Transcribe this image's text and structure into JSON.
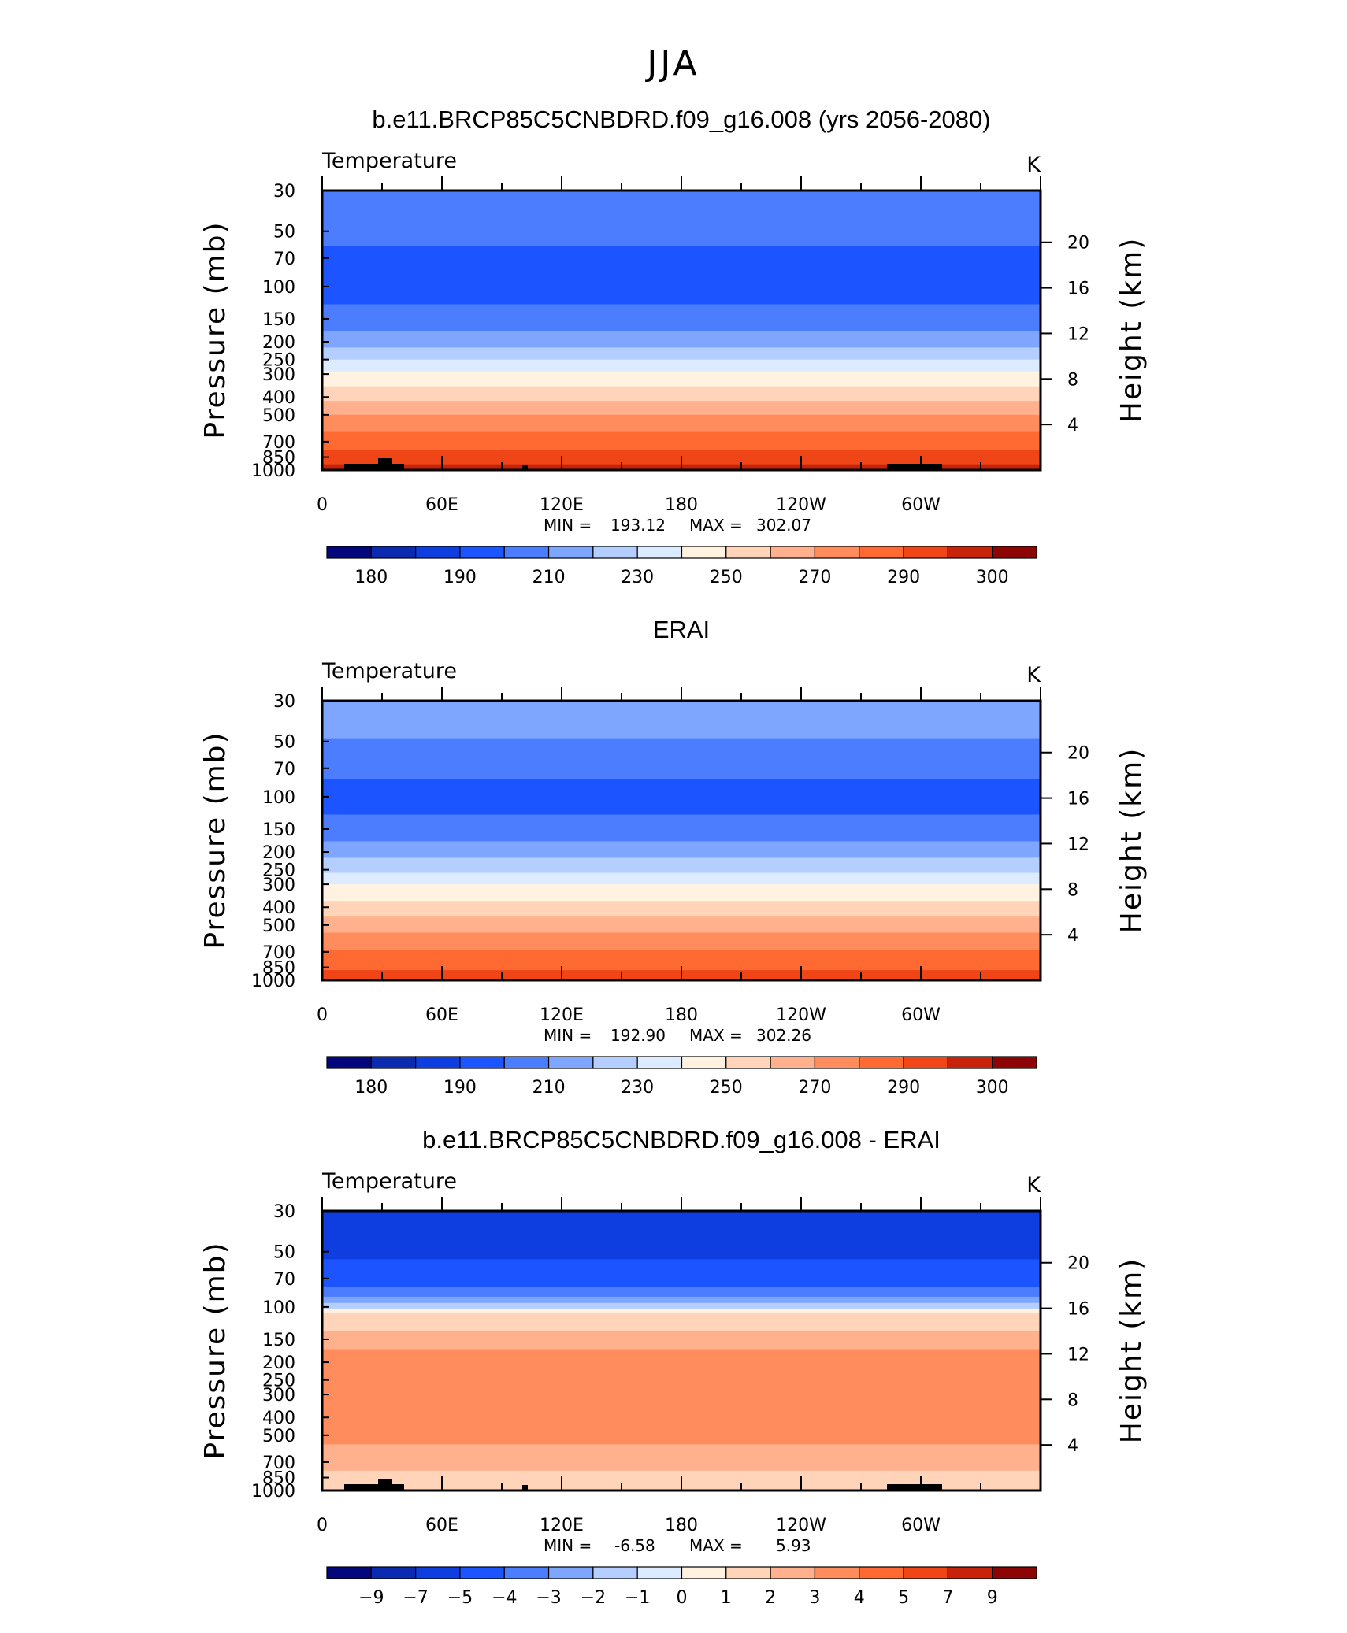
{
  "page_title": "JJA",
  "chart_data": [
    {
      "type": "heatmap",
      "title": "b.e11.BRCP85C5CNBDRD.f09_g16.008 (yrs 2056-2080)",
      "left_string": "Temperature",
      "right_string": "K",
      "ylabel": "Pressure (mb)",
      "ylabel_right": "Height (km)",
      "x_ticks": [
        "0",
        "60E",
        "120E",
        "180",
        "120W",
        "60W"
      ],
      "y_ticks": [
        30,
        50,
        70,
        100,
        150,
        200,
        250,
        300,
        400,
        500,
        700,
        850,
        1000
      ],
      "y_right_ticks": [
        4,
        8,
        12,
        16,
        20
      ],
      "ylim": [
        1000,
        30
      ],
      "stats": {
        "min_label": "MIN =",
        "min_value": "193.12",
        "max_label": "MAX =",
        "max_value": "302.07"
      },
      "colorbar_labels": [
        "180",
        "190",
        "210",
        "230",
        "250",
        "270",
        "290",
        "300"
      ],
      "colorbar_colors": [
        "#04067c",
        "#0a2ab0",
        "#0f3ee0",
        "#1c55ff",
        "#4c7dff",
        "#7ea6ff",
        "#b3ceff",
        "#dcebff",
        "#fff2e0",
        "#ffd4b8",
        "#ffb08c",
        "#ff8c5c",
        "#ff6a33",
        "#f04517",
        "#c7220a",
        "#8c0404"
      ],
      "field_layers": [
        {
          "p_top": 30,
          "p_bottom": 60,
          "color": "#4c7dff"
        },
        {
          "p_top": 60,
          "p_bottom": 125,
          "color": "#1c55ff"
        },
        {
          "p_top": 125,
          "p_bottom": 175,
          "color": "#4c7dff"
        },
        {
          "p_top": 175,
          "p_bottom": 215,
          "color": "#7ea6ff"
        },
        {
          "p_top": 215,
          "p_bottom": 250,
          "color": "#b3ceff"
        },
        {
          "p_top": 250,
          "p_bottom": 290,
          "color": "#dcebff"
        },
        {
          "p_top": 290,
          "p_bottom": 350,
          "color": "#fff2e0"
        },
        {
          "p_top": 350,
          "p_bottom": 420,
          "color": "#ffd4b8"
        },
        {
          "p_top": 420,
          "p_bottom": 500,
          "color": "#ffb08c"
        },
        {
          "p_top": 500,
          "p_bottom": 620,
          "color": "#ff8c5c"
        },
        {
          "p_top": 620,
          "p_bottom": 780,
          "color": "#ff6a33"
        },
        {
          "p_top": 780,
          "p_bottom": 930,
          "color": "#f04517"
        },
        {
          "p_top": 930,
          "p_bottom": 1000,
          "color": "#c7220a"
        }
      ]
    },
    {
      "type": "heatmap",
      "title": "ERAI",
      "left_string": "Temperature",
      "right_string": "K",
      "ylabel": "Pressure (mb)",
      "ylabel_right": "Height (km)",
      "x_ticks": [
        "0",
        "60E",
        "120E",
        "180",
        "120W",
        "60W"
      ],
      "y_ticks": [
        30,
        50,
        70,
        100,
        150,
        200,
        250,
        300,
        400,
        500,
        700,
        850,
        1000
      ],
      "y_right_ticks": [
        4,
        8,
        12,
        16,
        20
      ],
      "ylim": [
        1000,
        30
      ],
      "stats": {
        "min_label": "MIN =",
        "min_value": "192.90",
        "max_label": "MAX =",
        "max_value": "302.26"
      },
      "colorbar_labels": [
        "180",
        "190",
        "210",
        "230",
        "250",
        "270",
        "290",
        "300"
      ],
      "colorbar_colors": [
        "#04067c",
        "#0a2ab0",
        "#0f3ee0",
        "#1c55ff",
        "#4c7dff",
        "#7ea6ff",
        "#b3ceff",
        "#dcebff",
        "#fff2e0",
        "#ffd4b8",
        "#ffb08c",
        "#ff8c5c",
        "#ff6a33",
        "#f04517",
        "#c7220a",
        "#8c0404"
      ],
      "field_layers": [
        {
          "p_top": 30,
          "p_bottom": 48,
          "color": "#7ea6ff"
        },
        {
          "p_top": 48,
          "p_bottom": 80,
          "color": "#4c7dff"
        },
        {
          "p_top": 80,
          "p_bottom": 125,
          "color": "#1c55ff"
        },
        {
          "p_top": 125,
          "p_bottom": 175,
          "color": "#4c7dff"
        },
        {
          "p_top": 175,
          "p_bottom": 215,
          "color": "#7ea6ff"
        },
        {
          "p_top": 215,
          "p_bottom": 260,
          "color": "#b3ceff"
        },
        {
          "p_top": 260,
          "p_bottom": 300,
          "color": "#dcebff"
        },
        {
          "p_top": 300,
          "p_bottom": 370,
          "color": "#fff2e0"
        },
        {
          "p_top": 370,
          "p_bottom": 450,
          "color": "#ffd4b8"
        },
        {
          "p_top": 450,
          "p_bottom": 550,
          "color": "#ffb08c"
        },
        {
          "p_top": 550,
          "p_bottom": 680,
          "color": "#ff8c5c"
        },
        {
          "p_top": 680,
          "p_bottom": 880,
          "color": "#ff6a33"
        },
        {
          "p_top": 880,
          "p_bottom": 1000,
          "color": "#f04517"
        }
      ]
    },
    {
      "type": "heatmap",
      "title": "b.e11.BRCP85C5CNBDRD.f09_g16.008 - ERAI",
      "left_string": "Temperature",
      "right_string": "K",
      "ylabel": "Pressure (mb)",
      "ylabel_right": "Height (km)",
      "x_ticks": [
        "0",
        "60E",
        "120E",
        "180",
        "120W",
        "60W"
      ],
      "y_ticks": [
        30,
        50,
        70,
        100,
        150,
        200,
        250,
        300,
        400,
        500,
        700,
        850,
        1000
      ],
      "y_right_ticks": [
        4,
        8,
        12,
        16,
        20
      ],
      "ylim": [
        1000,
        30
      ],
      "stats": {
        "min_label": "MIN =",
        "min_value": "-6.58",
        "max_label": "MAX =",
        "max_value": "5.93"
      },
      "colorbar_labels": [
        "−9",
        "−7",
        "−5",
        "−4",
        "−3",
        "−2",
        "−1",
        "0",
        "1",
        "2",
        "3",
        "4",
        "5",
        "7",
        "9"
      ],
      "colorbar_colors": [
        "#04067c",
        "#0a2ab0",
        "#0f3ee0",
        "#1c55ff",
        "#4c7dff",
        "#7ea6ff",
        "#b3ceff",
        "#dcebff",
        "#fff2e0",
        "#ffd4b8",
        "#ffb08c",
        "#ff8c5c",
        "#ff6a33",
        "#f04517",
        "#c7220a",
        "#8c0404"
      ],
      "field_layers": [
        {
          "p_top": 30,
          "p_bottom": 55,
          "color": "#0f3ee0"
        },
        {
          "p_top": 55,
          "p_bottom": 78,
          "color": "#1c55ff"
        },
        {
          "p_top": 78,
          "p_bottom": 88,
          "color": "#4c7dff"
        },
        {
          "p_top": 88,
          "p_bottom": 95,
          "color": "#7ea6ff"
        },
        {
          "p_top": 95,
          "p_bottom": 102,
          "color": "#b3ceff"
        },
        {
          "p_top": 102,
          "p_bottom": 108,
          "color": "#fff2e0"
        },
        {
          "p_top": 108,
          "p_bottom": 135,
          "color": "#ffd4b8"
        },
        {
          "p_top": 135,
          "p_bottom": 170,
          "color": "#ffb08c"
        },
        {
          "p_top": 170,
          "p_bottom": 560,
          "color": "#ff8c5c"
        },
        {
          "p_top": 560,
          "p_bottom": 780,
          "color": "#ffb08c"
        },
        {
          "p_top": 780,
          "p_bottom": 1000,
          "color": "#ffd4b8"
        }
      ]
    }
  ]
}
